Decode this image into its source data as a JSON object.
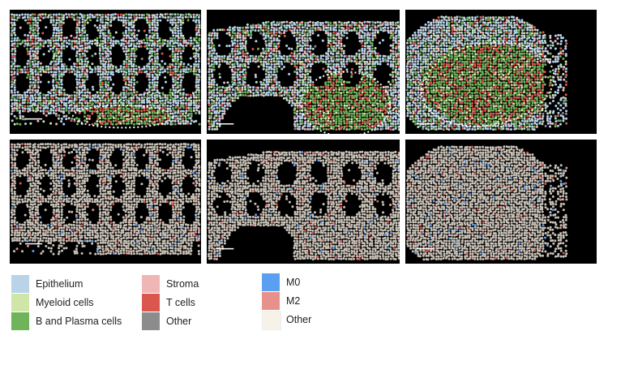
{
  "panels": {
    "top": [
      {
        "name": "panel-top-1",
        "scale_bar": true,
        "dotted_region": true
      },
      {
        "name": "panel-top-2",
        "scale_bar": true,
        "dotted_region": true
      },
      {
        "name": "panel-top-3",
        "scale_bar": true,
        "dotted_region": true
      }
    ],
    "bottom": [
      {
        "name": "panel-bottom-1",
        "scale_bar": true
      },
      {
        "name": "panel-bottom-2",
        "scale_bar": true
      },
      {
        "name": "panel-bottom-3",
        "scale_bar": true
      }
    ]
  },
  "colors": {
    "epithelium": "#b9d3e8",
    "myeloid": "#cfe6a8",
    "b_plasma": "#6fb35a",
    "stroma": "#f0b5b5",
    "t_cells": "#d9574f",
    "other_cell": "#8c8c8c",
    "m0": "#5b9ff0",
    "m2": "#e8918a",
    "other_macro": "#f7f2e8",
    "grey_dot": "#c9c2b8"
  },
  "legend": {
    "cell_types": [
      {
        "label": "Epithelium",
        "color": "#b9d3e8"
      },
      {
        "label": "Myeloid cells",
        "color": "#cfe6a8"
      },
      {
        "label": "B and Plasma cells",
        "color": "#6fb35a"
      }
    ],
    "cell_types_2": [
      {
        "label": "Stroma",
        "color": "#f0b5b5"
      },
      {
        "label": "T cells",
        "color": "#d9574f"
      },
      {
        "label": "Other",
        "color": "#8c8c8c"
      }
    ],
    "macrophages": [
      {
        "label": "M0",
        "color": "#5b9ff0"
      },
      {
        "label": "M2",
        "color": "#e8918a"
      },
      {
        "label": "Other",
        "color": "#f7f2e8"
      }
    ]
  }
}
